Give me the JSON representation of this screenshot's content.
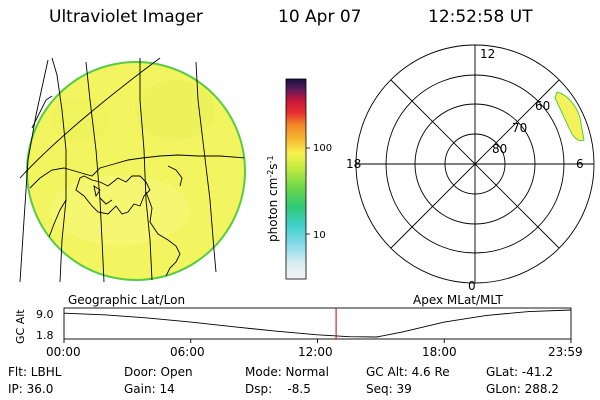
{
  "header": {
    "title": "Ultraviolet Imager",
    "date": "10 Apr 07",
    "time": "12:52:58 UT"
  },
  "left_panel_label": "Geographic Lat/Lon",
  "right_panel_label": "Apex MLat/MLT",
  "colorbar": {
    "unit_text": "photon cm",
    "unit_exp1": "-2",
    "unit_s": "s",
    "unit_exp2": "-1",
    "tick_100": "100",
    "tick_10": "10",
    "scale": "log",
    "range": [
      2.5,
      800
    ]
  },
  "polar": {
    "mlt_top": "12",
    "mlt_left": "18",
    "mlt_right": "6",
    "mlt_bottom": "0",
    "lat_60": "60",
    "lat_70": "70",
    "lat_80": "80"
  },
  "alt_plot": {
    "ylabel": "GC Alt",
    "y_top": "9.0",
    "y_bottom": "1.8",
    "x_ticks": [
      "00:00",
      "06:00",
      "12:00",
      "18:00",
      "23:59"
    ],
    "current_time_hours": 12.88,
    "cursor_color": "#cc0000"
  },
  "footer": {
    "filter": "Flt: LBHL",
    "ip": "IP: 36.0",
    "door": "Door: Open",
    "gain": "Gain: 14",
    "mode": "Mode: Normal",
    "dsp": "Dsp:    -8.5",
    "gc_alt": "GC Alt: 4.6 Re",
    "seq": "Seq: 39",
    "glat": "GLat: -41.2",
    "glon": "GLon: 288.2"
  },
  "colors": {
    "disk_fill": "#f2f560",
    "disk_rim": "#55cc44",
    "polar_fill": "#f4f25a"
  }
}
